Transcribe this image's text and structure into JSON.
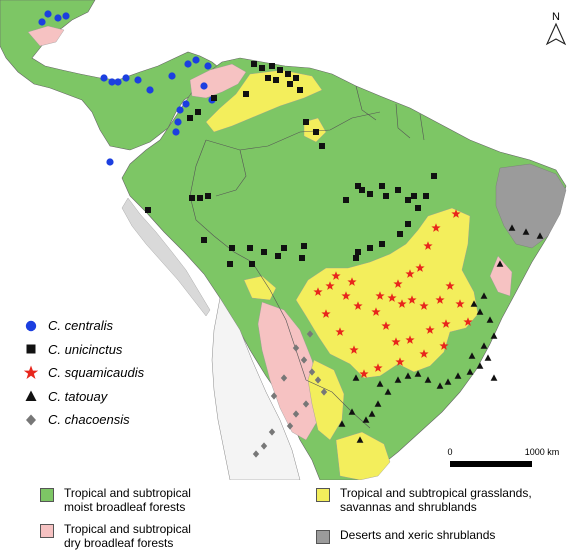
{
  "north_arrow": {
    "label": "N"
  },
  "scale_bar": {
    "start_label": "0",
    "end_label": "1000 km"
  },
  "species_legend": [
    {
      "id": "centralis",
      "label": "C. centralis",
      "symbol": "circle",
      "color": "#1c3fe0"
    },
    {
      "id": "unicinctus",
      "label": "C. unicinctus",
      "symbol": "square",
      "color": "#111111"
    },
    {
      "id": "squamicaudis",
      "label": "C. squamicaudis",
      "symbol": "star",
      "color": "#e8261c"
    },
    {
      "id": "tatouay",
      "label": "C. tatouay",
      "symbol": "triangle",
      "color": "#111111"
    },
    {
      "id": "chacoensis",
      "label": "C. chacoensis",
      "symbol": "diamond",
      "color": "#777777"
    }
  ],
  "biome_legend": [
    {
      "id": "moist",
      "label": "Tropical and subtropical\nmoist broadleaf forests",
      "color": "#7dc665"
    },
    {
      "id": "grass",
      "label": "Tropical and subtropical grasslands,\nsavannas and shrublands",
      "color": "#f3ee5c"
    },
    {
      "id": "dry",
      "label": "Tropical and subtropical\ndry broadleaf forests",
      "color": "#f6c2c2"
    },
    {
      "id": "desert",
      "label": "Deserts and xeric shrublands",
      "color": "#9b9b9b"
    }
  ]
}
